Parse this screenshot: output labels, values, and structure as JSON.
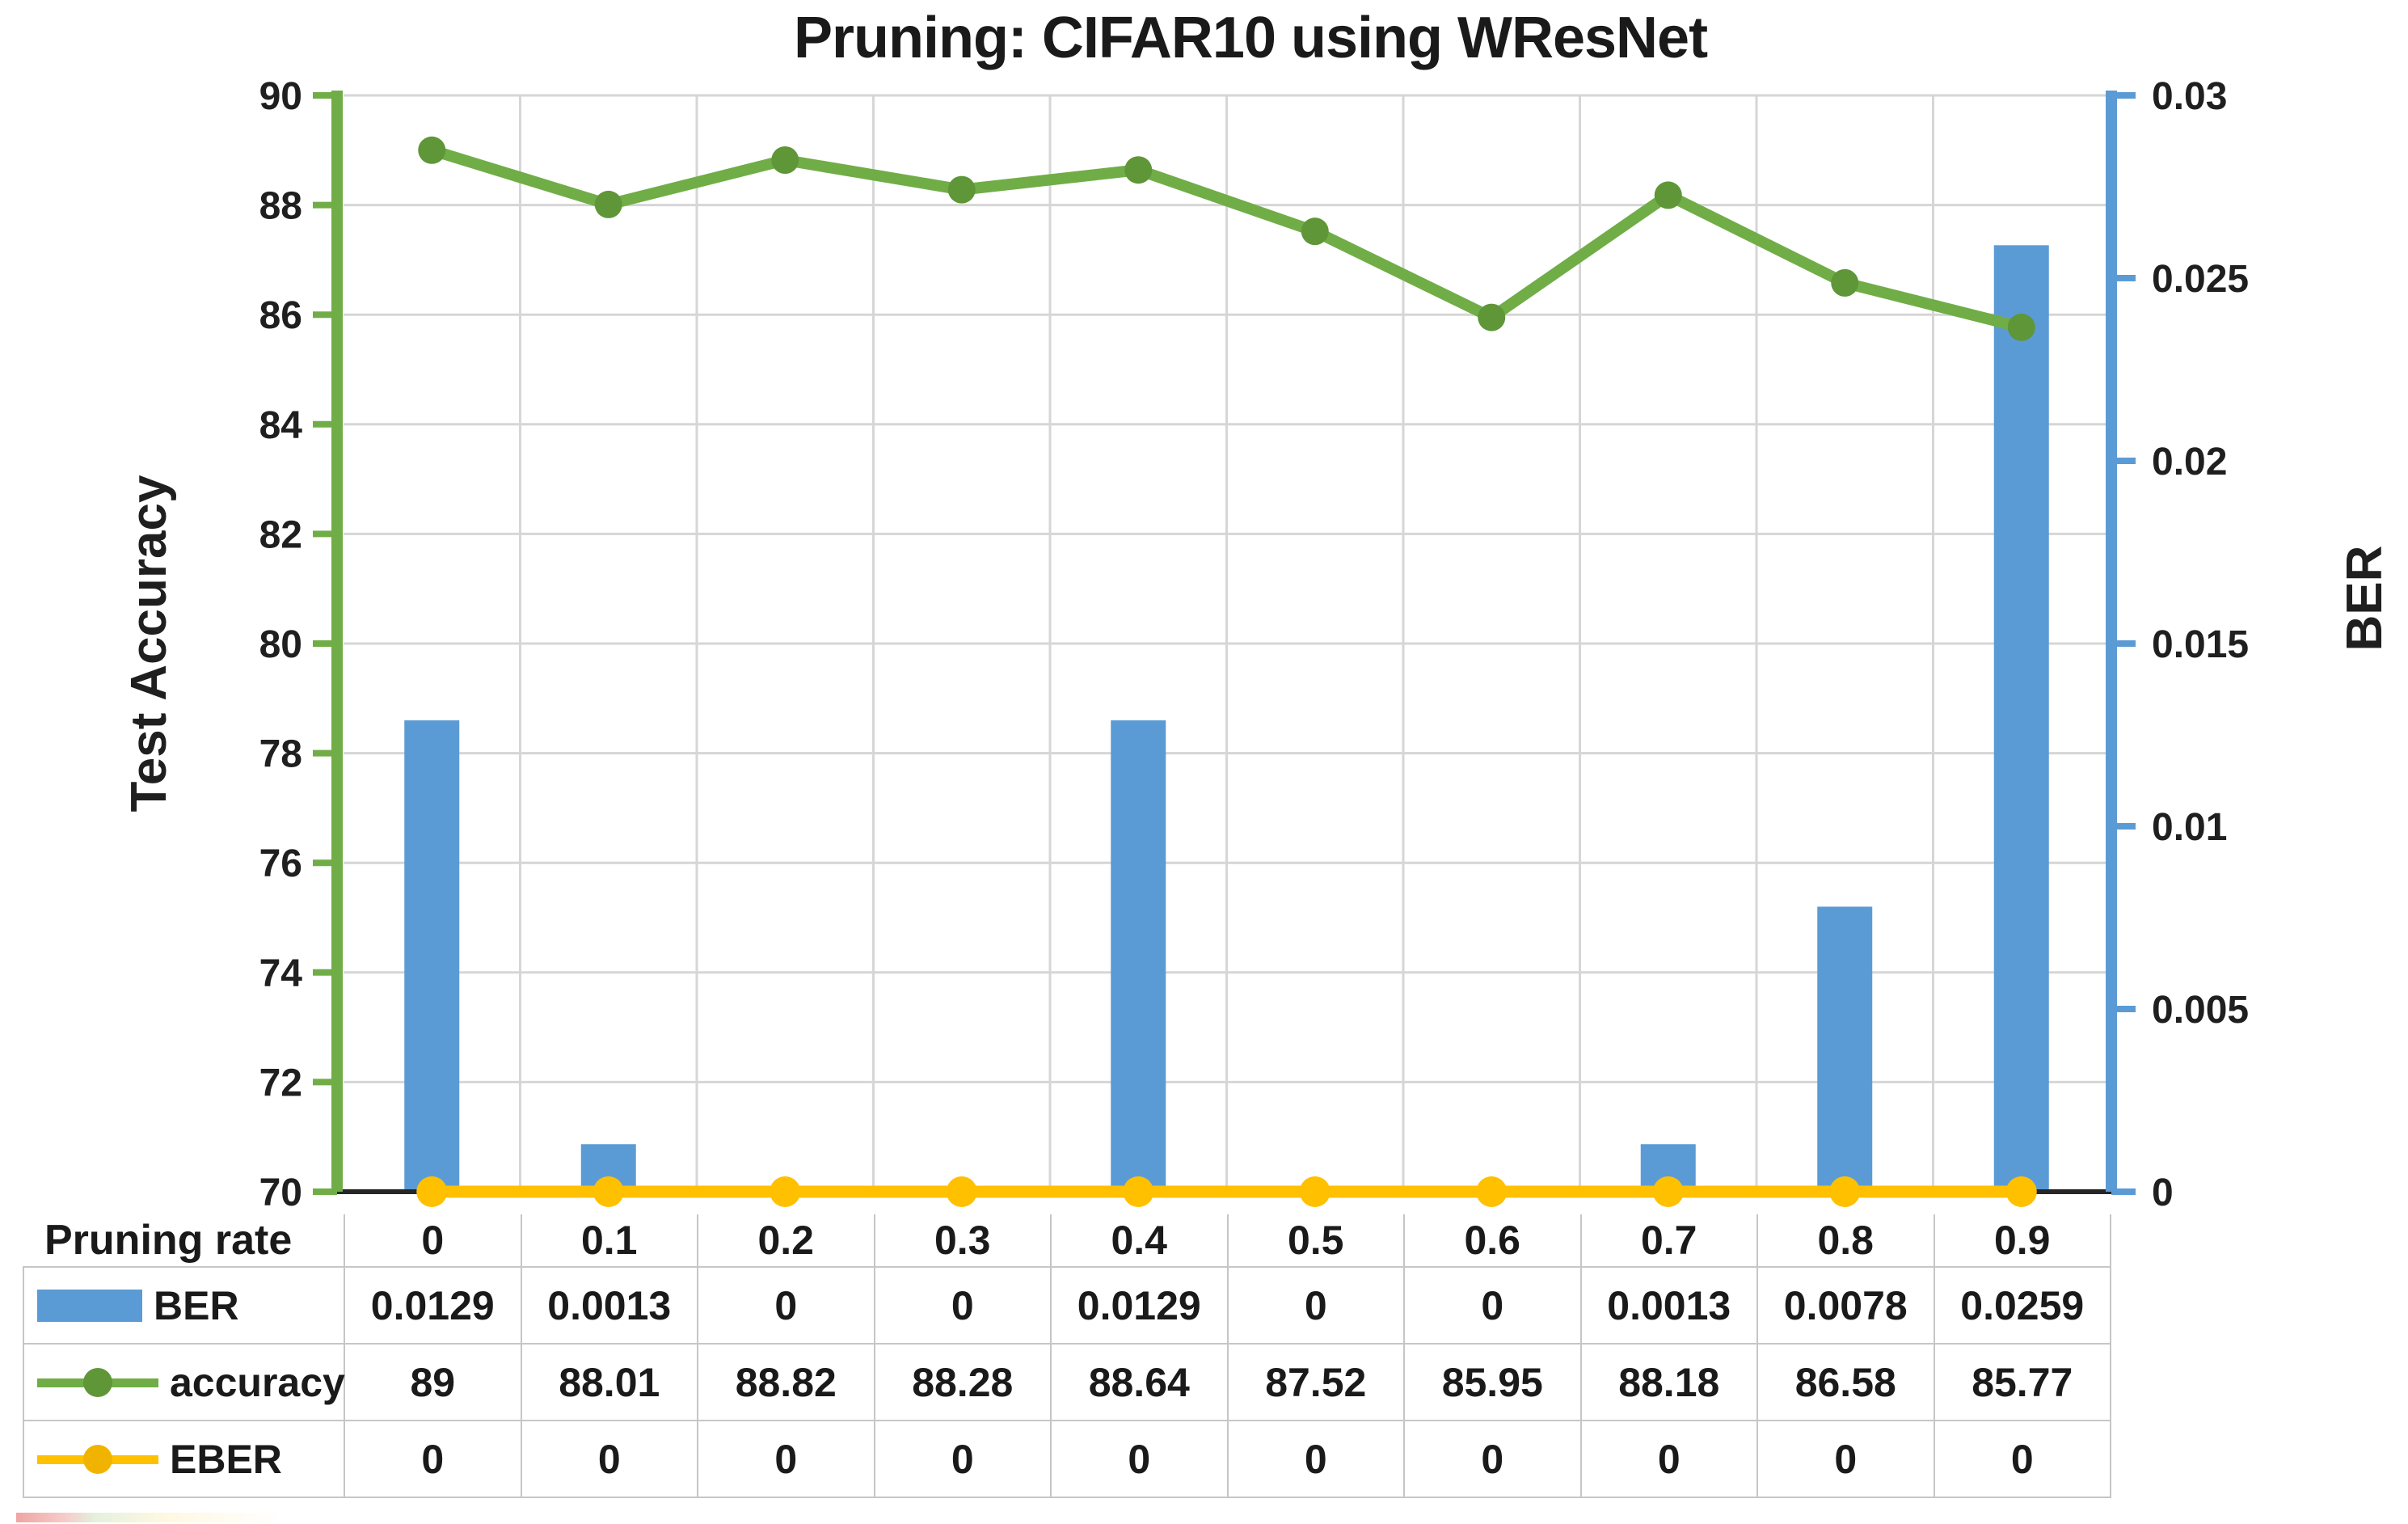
{
  "title": "Pruning: CIFAR10 using WResNet",
  "chart_data": {
    "type": "combo",
    "title": "Pruning: CIFAR10 using WResNet",
    "categories": [
      "0",
      "0.1",
      "0.2",
      "0.3",
      "0.4",
      "0.5",
      "0.6",
      "0.7",
      "0.8",
      "0.9"
    ],
    "series": [
      {
        "name": "BER",
        "type": "bar",
        "axis": "right",
        "color": "#5B9BD5",
        "values": [
          0.0129,
          0.0013,
          0,
          0,
          0.0129,
          0,
          0,
          0.0013,
          0.0078,
          0.0259
        ]
      },
      {
        "name": "accuracy",
        "type": "line",
        "axis": "left",
        "color": "#70AD47",
        "marker_color": "#5E9638",
        "values": [
          89,
          88.01,
          88.82,
          88.28,
          88.64,
          87.52,
          85.95,
          88.18,
          86.58,
          85.77
        ]
      },
      {
        "name": "EBER",
        "type": "line",
        "axis": "right",
        "color": "#FFC000",
        "marker_color": "#FFC000",
        "values": [
          0,
          0,
          0,
          0,
          0,
          0,
          0,
          0,
          0,
          0
        ]
      }
    ],
    "left_axis": {
      "title": "Test Accuracy",
      "min": 70,
      "max": 90,
      "step": 2,
      "ticks": [
        "90",
        "88",
        "86",
        "84",
        "82",
        "80",
        "78",
        "76",
        "74",
        "72",
        "70"
      ],
      "line_color": "#70AD47"
    },
    "right_axis": {
      "title": "BER",
      "min": 0,
      "max": 0.03,
      "step": 0.005,
      "ticks": [
        "0.03",
        "0.025",
        "0.02",
        "0.015",
        "0.01",
        "0.005",
        "0"
      ],
      "line_color": "#5B9BD5"
    },
    "x_axis": {
      "title": "Pruning rate",
      "line_color": "#262626"
    },
    "grid": true,
    "legend_position": "table-left"
  },
  "table": {
    "header": {
      "label": "Pruning rate",
      "columns": [
        "0",
        "0.1",
        "0.2",
        "0.3",
        "0.4",
        "0.5",
        "0.6",
        "0.7",
        "0.8",
        "0.9"
      ]
    },
    "rows": [
      {
        "label": "BER",
        "swatch": "bar",
        "color": "#5B9BD5",
        "marker_color": "#5B9BD5",
        "values": [
          "0.0129",
          "0.0013",
          "0",
          "0",
          "0.0129",
          "0",
          "0",
          "0.0013",
          "0.0078",
          "0.0259"
        ]
      },
      {
        "label": "accuracy",
        "swatch": "line",
        "color": "#70AD47",
        "marker_color": "#5E9638",
        "values": [
          "89",
          "88.01",
          "88.82",
          "88.28",
          "88.64",
          "87.52",
          "85.95",
          "88.18",
          "86.58",
          "85.77"
        ]
      },
      {
        "label": "EBER",
        "swatch": "line",
        "color": "#FFC000",
        "marker_color": "#F0B400",
        "values": [
          "0",
          "0",
          "0",
          "0",
          "0",
          "0",
          "0",
          "0",
          "0",
          "0"
        ]
      }
    ]
  },
  "colors": {
    "bar_blue": "#5B9BD5",
    "line_green": "#70AD47",
    "line_yellow": "#FFC000",
    "gridline": "#D6D6D6",
    "table_border": "#C6C6C6",
    "axis_black": "#262626"
  }
}
